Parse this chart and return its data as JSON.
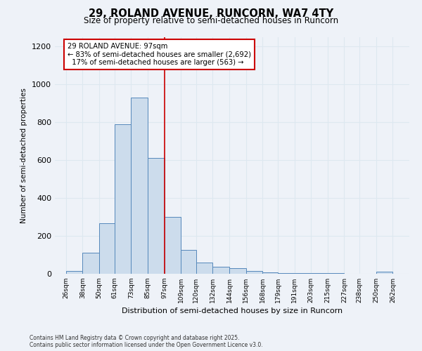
{
  "title_line1": "29, ROLAND AVENUE, RUNCORN, WA7 4TY",
  "title_line2": "Size of property relative to semi-detached houses in Runcorn",
  "xlabel": "Distribution of semi-detached houses by size in Runcorn",
  "ylabel": "Number of semi-detached properties",
  "values": [
    15,
    110,
    265,
    790,
    930,
    610,
    300,
    125,
    60,
    37,
    28,
    13,
    8,
    5,
    3,
    4,
    2,
    0,
    0,
    0,
    10
  ],
  "bin_lefts": [
    26,
    38,
    50,
    61,
    73,
    85,
    97,
    109,
    120,
    132,
    144,
    156,
    168,
    179,
    191,
    203,
    215,
    227,
    238,
    250,
    250
  ],
  "bin_widths": [
    12,
    12,
    11,
    12,
    12,
    12,
    12,
    11,
    12,
    12,
    12,
    12,
    11,
    12,
    12,
    12,
    12,
    11,
    12,
    12,
    12
  ],
  "property_size": 97,
  "property_label": "29 ROLAND AVENUE: 97sqm",
  "pct_smaller": 83,
  "n_smaller": 2692,
  "pct_larger": 17,
  "n_larger": 563,
  "bar_color": "#ccdcec",
  "bar_edge_color": "#5588bb",
  "vline_color": "#cc0000",
  "annotation_box_color": "#cc0000",
  "ylim": [
    0,
    1250
  ],
  "yticks": [
    0,
    200,
    400,
    600,
    800,
    1000,
    1200
  ],
  "grid_color": "#dde8f0",
  "bg_color": "#eef2f8",
  "footer1": "Contains HM Land Registry data © Crown copyright and database right 2025.",
  "footer2": "Contains public sector information licensed under the Open Government Licence v3.0."
}
